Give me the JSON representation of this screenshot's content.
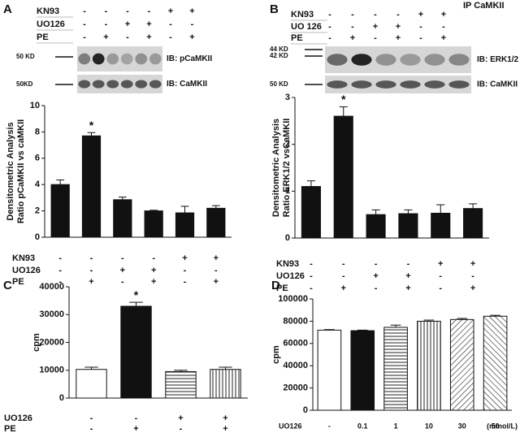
{
  "chart_data": [
    {
      "type": "bar",
      "panel": "A",
      "ylabel": [
        "Densitometric Analysis",
        "Ratio pCaMKII vs caMKII"
      ],
      "values": [
        4.0,
        7.7,
        2.85,
        2.0,
        1.85,
        2.2
      ],
      "errors": [
        0.35,
        0.25,
        0.2,
        0.05,
        0.5,
        0.2
      ],
      "markers": [
        null,
        "*",
        null,
        null,
        null,
        null
      ],
      "bar_fills": [
        "black",
        "black",
        "black",
        "black",
        "black",
        "black"
      ],
      "ylim": [
        0,
        10
      ],
      "yticks": [
        0,
        2,
        4,
        6,
        8,
        10
      ],
      "top_conditions": [
        {
          "name": "KN93",
          "marks": [
            "-",
            "-",
            "-",
            "-",
            "+",
            "+"
          ]
        },
        {
          "name": "UO126",
          "marks": [
            "-",
            "-",
            "+",
            "+",
            "-",
            "-"
          ]
        },
        {
          "name": "PE",
          "marks": [
            "-",
            "+",
            "-",
            "+",
            "-",
            "+"
          ]
        }
      ],
      "blots": [
        {
          "sizes": [
            "50 KD"
          ],
          "label": "IB: pCaMKII"
        },
        {
          "sizes": [
            "50KD"
          ],
          "label": "IB: CaMKII"
        }
      ],
      "conditions": [
        {
          "name": "KN93",
          "marks": [
            "-",
            "-",
            "-",
            "-",
            "+",
            "+"
          ]
        },
        {
          "name": "UO126",
          "marks": [
            "-",
            "-",
            "+",
            "+",
            "-",
            "-"
          ]
        },
        {
          "name": "PE",
          "marks": [
            "-",
            "+",
            "-",
            "+",
            "-",
            "+"
          ]
        }
      ]
    },
    {
      "type": "bar",
      "panel": "B",
      "subtitle": "IP CaMKII",
      "ylabel": [
        "Densitometric Analysis",
        "Ratio ERK1/2 vsCaMKII"
      ],
      "values": [
        1.1,
        2.6,
        0.5,
        0.52,
        0.53,
        0.63
      ],
      "errors": [
        0.12,
        0.2,
        0.1,
        0.08,
        0.18,
        0.1
      ],
      "markers": [
        null,
        "*",
        null,
        null,
        null,
        null
      ],
      "bar_fills": [
        "black",
        "black",
        "black",
        "black",
        "black",
        "black"
      ],
      "ylim": [
        0,
        3
      ],
      "yticks": [
        0,
        1,
        2,
        3
      ],
      "top_conditions": [
        {
          "name": "KN93",
          "marks": [
            "-",
            "-",
            "-",
            "-",
            "+",
            "+"
          ]
        },
        {
          "name": "UO 126",
          "marks": [
            "-",
            "-",
            "+",
            "+",
            "-",
            "-"
          ]
        },
        {
          "name": "PE",
          "marks": [
            "-",
            "+",
            "-",
            "+",
            "-",
            "+"
          ]
        }
      ],
      "blots": [
        {
          "sizes": [
            "44 KD",
            "42 KD"
          ],
          "label": "IB: ERK1/2"
        },
        {
          "sizes": [
            "50 KD"
          ],
          "label": "IB: CaMKII"
        }
      ],
      "conditions": [
        {
          "name": "KN93",
          "marks": [
            "-",
            "-",
            "-",
            "-",
            "+",
            "+"
          ]
        },
        {
          "name": "UO126",
          "marks": [
            "-",
            "-",
            "+",
            "+",
            "-",
            "-"
          ]
        },
        {
          "name": "PE",
          "marks": [
            "-",
            "+",
            "-",
            "+",
            "-",
            "+"
          ]
        }
      ]
    },
    {
      "type": "bar",
      "panel": "C",
      "ylabel": [
        "cpm"
      ],
      "values": [
        10300,
        33000,
        9500,
        10300
      ],
      "errors": [
        800,
        1400,
        500,
        800
      ],
      "markers": [
        null,
        "*",
        null,
        null
      ],
      "bar_fills": [
        "white",
        "black",
        "horizontal",
        "vertical"
      ],
      "ylim": [
        0,
        40000
      ],
      "yticks": [
        0,
        10000,
        20000,
        30000,
        40000
      ],
      "conditions": [
        {
          "name": "UO126",
          "marks": [
            "-",
            "-",
            "+",
            "+"
          ]
        },
        {
          "name": "PE",
          "marks": [
            "-",
            "+",
            "-",
            "+"
          ]
        }
      ]
    },
    {
      "type": "bar",
      "panel": "D",
      "ylabel": [
        "cpm"
      ],
      "xlabel": "UO126",
      "unit": "(mmol/L)",
      "categories": [
        "-",
        "0.1",
        "1",
        "10",
        "30",
        "50"
      ],
      "values": [
        72000,
        71500,
        74500,
        80000,
        81500,
        84500
      ],
      "errors": [
        500,
        500,
        2000,
        1000,
        1000,
        800
      ],
      "bar_fills": [
        "white",
        "black",
        "horizontal",
        "vertical",
        "diagonal",
        "antidiagonal"
      ],
      "ylim": [
        0,
        100000
      ],
      "yticks": [
        0,
        20000,
        40000,
        60000,
        80000,
        100000
      ]
    }
  ]
}
